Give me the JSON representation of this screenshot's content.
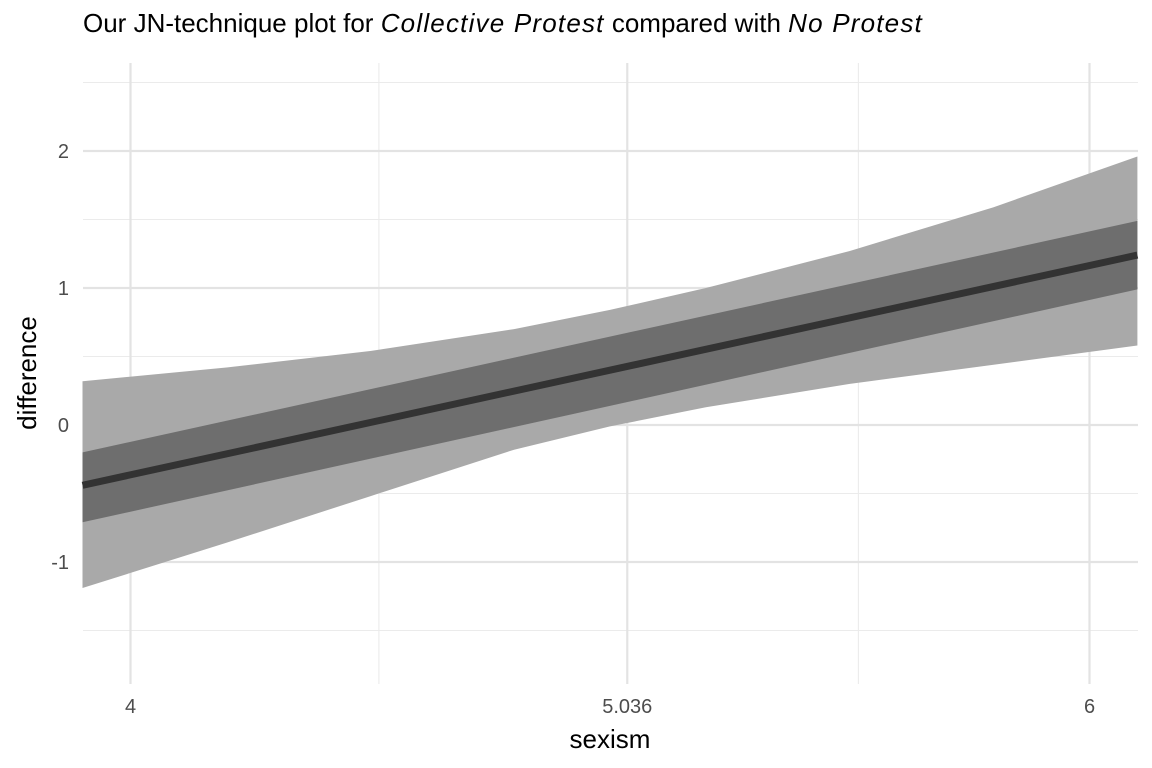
{
  "title": {
    "prefix": "Our JN-technique plot for ",
    "group1": "Collective Protest",
    "middle": " compared with ",
    "group2": "No Protest"
  },
  "chart_data": {
    "type": "line",
    "title": "Our JN-technique plot for Collective Protest compared with No Protest",
    "xlabel": "sexism",
    "ylabel": "difference",
    "xlim": [
      3.9,
      6.1
    ],
    "ylim": [
      -1.5,
      2.5
    ],
    "x_ticks": [
      4,
      5.036,
      6
    ],
    "x_tick_labels": [
      "4",
      "5.036",
      "6"
    ],
    "x_minor_ticks": [
      4.518,
      5.518
    ],
    "y_ticks": [
      -1,
      0,
      1,
      2
    ],
    "y_tick_labels": [
      "-1",
      "0",
      "1",
      "2"
    ],
    "y_minor_ticks": [
      -1.5,
      -0.5,
      0.5,
      1.5,
      2.5
    ],
    "grid": true,
    "series": [
      {
        "x": [
          3.9,
          6.1
        ],
        "y": [
          -0.44,
          1.24
        ],
        "color": "#333333"
      }
    ],
    "bands": [
      {
        "color": "#a9a9a9",
        "x": [
          3.9,
          4.2,
          4.5,
          4.8,
          5.0,
          5.2,
          5.5,
          5.8,
          6.1
        ],
        "lower": [
          -1.19,
          -0.86,
          -0.52,
          -0.18,
          -0.01,
          0.13,
          0.3,
          0.44,
          0.58
        ],
        "upper": [
          0.32,
          0.42,
          0.54,
          0.7,
          0.84,
          1.0,
          1.27,
          1.59,
          1.96
        ]
      },
      {
        "color": "#6e6e6e",
        "x": [
          3.9,
          6.1
        ],
        "lower": [
          -0.71,
          0.99
        ],
        "upper": [
          -0.2,
          1.49
        ]
      }
    ]
  }
}
